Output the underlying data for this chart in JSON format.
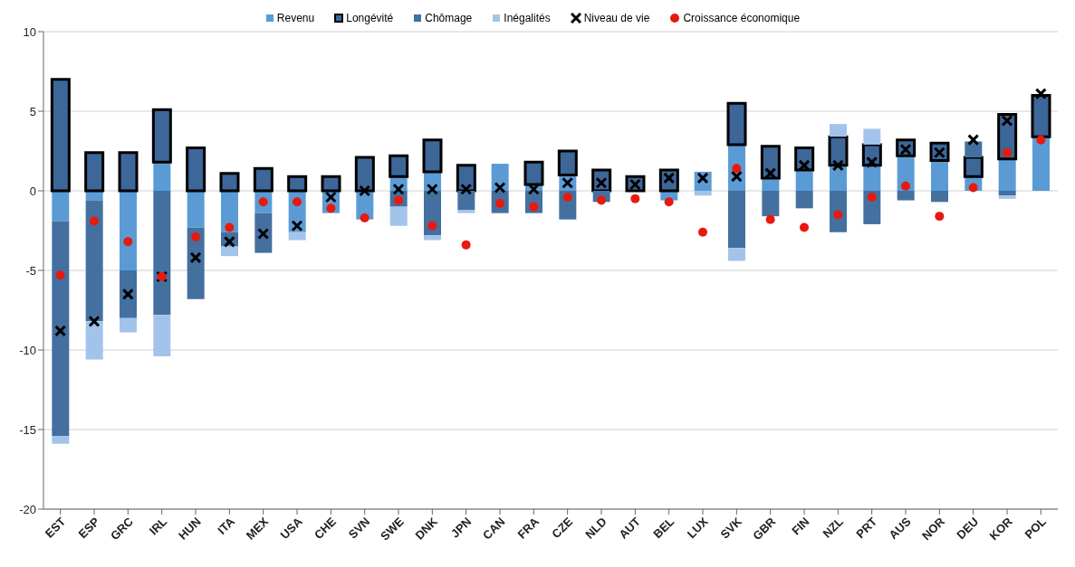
{
  "chart_data": {
    "type": "bar",
    "stacked": true,
    "categories": [
      "EST",
      "ESP",
      "GRC",
      "IRL",
      "HUN",
      "ITA",
      "MEX",
      "USA",
      "CHE",
      "SVN",
      "SWE",
      "DNK",
      "JPN",
      "CAN",
      "FRA",
      "CZE",
      "NLD",
      "AUT",
      "BEL",
      "LUX",
      "SVK",
      "GBR",
      "FIN",
      "NZL",
      "PRT",
      "AUS",
      "NOR",
      "DEU",
      "KOR",
      "POL"
    ],
    "series": [
      {
        "name": "Revenu",
        "color": "#5b9bd5",
        "values": [
          -1.9,
          -0.6,
          -5.0,
          1.8,
          -2.3,
          -2.6,
          -1.4,
          -2.6,
          -1.4,
          -1.8,
          0.9,
          1.2,
          null,
          1.7,
          0.4,
          1.0,
          null,
          null,
          -0.6,
          1.2,
          2.9,
          0.8,
          1.3,
          1.6,
          1.6,
          2.2,
          1.9,
          0.9,
          2.0,
          3.4
        ]
      },
      {
        "name": "Longévité",
        "color": "#3d6699",
        "values": [
          7.0,
          2.4,
          2.4,
          3.3,
          2.7,
          1.1,
          1.4,
          0.9,
          0.9,
          2.1,
          1.3,
          2.0,
          1.6,
          null,
          1.4,
          1.5,
          1.3,
          0.9,
          1.3,
          null,
          2.6,
          2.0,
          1.4,
          1.8,
          1.3,
          1.0,
          1.1,
          1.2,
          2.8,
          2.6
        ]
      },
      {
        "name": "Chômage",
        "color": "#44709f",
        "values": [
          -13.5,
          -7.6,
          -3.0,
          -7.8,
          -4.5,
          -0.9,
          -2.5,
          null,
          null,
          null,
          -1.0,
          -2.8,
          -1.2,
          -1.4,
          -1.4,
          -1.8,
          -0.7,
          null,
          null,
          null,
          -3.6,
          -1.6,
          -1.1,
          -2.6,
          -2.1,
          -0.6,
          -0.7,
          1.0,
          -0.3,
          null
        ]
      },
      {
        "name": "Inégalités",
        "color": "#a3c4ea",
        "values": [
          -0.5,
          -2.4,
          -0.9,
          -2.6,
          null,
          -0.6,
          null,
          -0.5,
          null,
          null,
          -1.2,
          -0.3,
          -0.2,
          null,
          null,
          null,
          null,
          null,
          null,
          -0.3,
          -0.8,
          null,
          null,
          0.8,
          1.0,
          null,
          null,
          null,
          -0.2,
          null
        ]
      },
      {
        "name": "Niveau de vie",
        "type": "scatter",
        "marker": "cross",
        "color": "#000000",
        "values": [
          -8.8,
          -8.2,
          -6.5,
          -5.4,
          -4.2,
          -3.2,
          -2.7,
          -2.2,
          -0.4,
          0.0,
          0.1,
          0.1,
          0.1,
          0.2,
          0.1,
          0.5,
          0.5,
          0.4,
          0.8,
          0.8,
          0.9,
          1.1,
          1.6,
          1.6,
          1.8,
          2.6,
          2.4,
          3.2,
          4.4,
          6.1
        ]
      },
      {
        "name": "Croissance économique",
        "type": "scatter",
        "marker": "circle",
        "color": "#e8190e",
        "values": [
          -5.3,
          -1.9,
          -3.2,
          -5.4,
          -2.9,
          -2.3,
          -0.7,
          -0.7,
          -1.1,
          -1.7,
          -0.6,
          -2.2,
          -3.4,
          -0.8,
          -1.0,
          -0.4,
          -0.6,
          -0.5,
          -0.7,
          -2.6,
          1.4,
          -1.8,
          -2.3,
          -1.5,
          -0.4,
          0.3,
          -1.6,
          0.2,
          2.4,
          3.2
        ]
      }
    ],
    "ylim": [
      -20,
      10
    ],
    "yticks": [
      10,
      5,
      0,
      -5,
      -10,
      -15,
      -20
    ],
    "grid": "y",
    "legend": "top"
  }
}
